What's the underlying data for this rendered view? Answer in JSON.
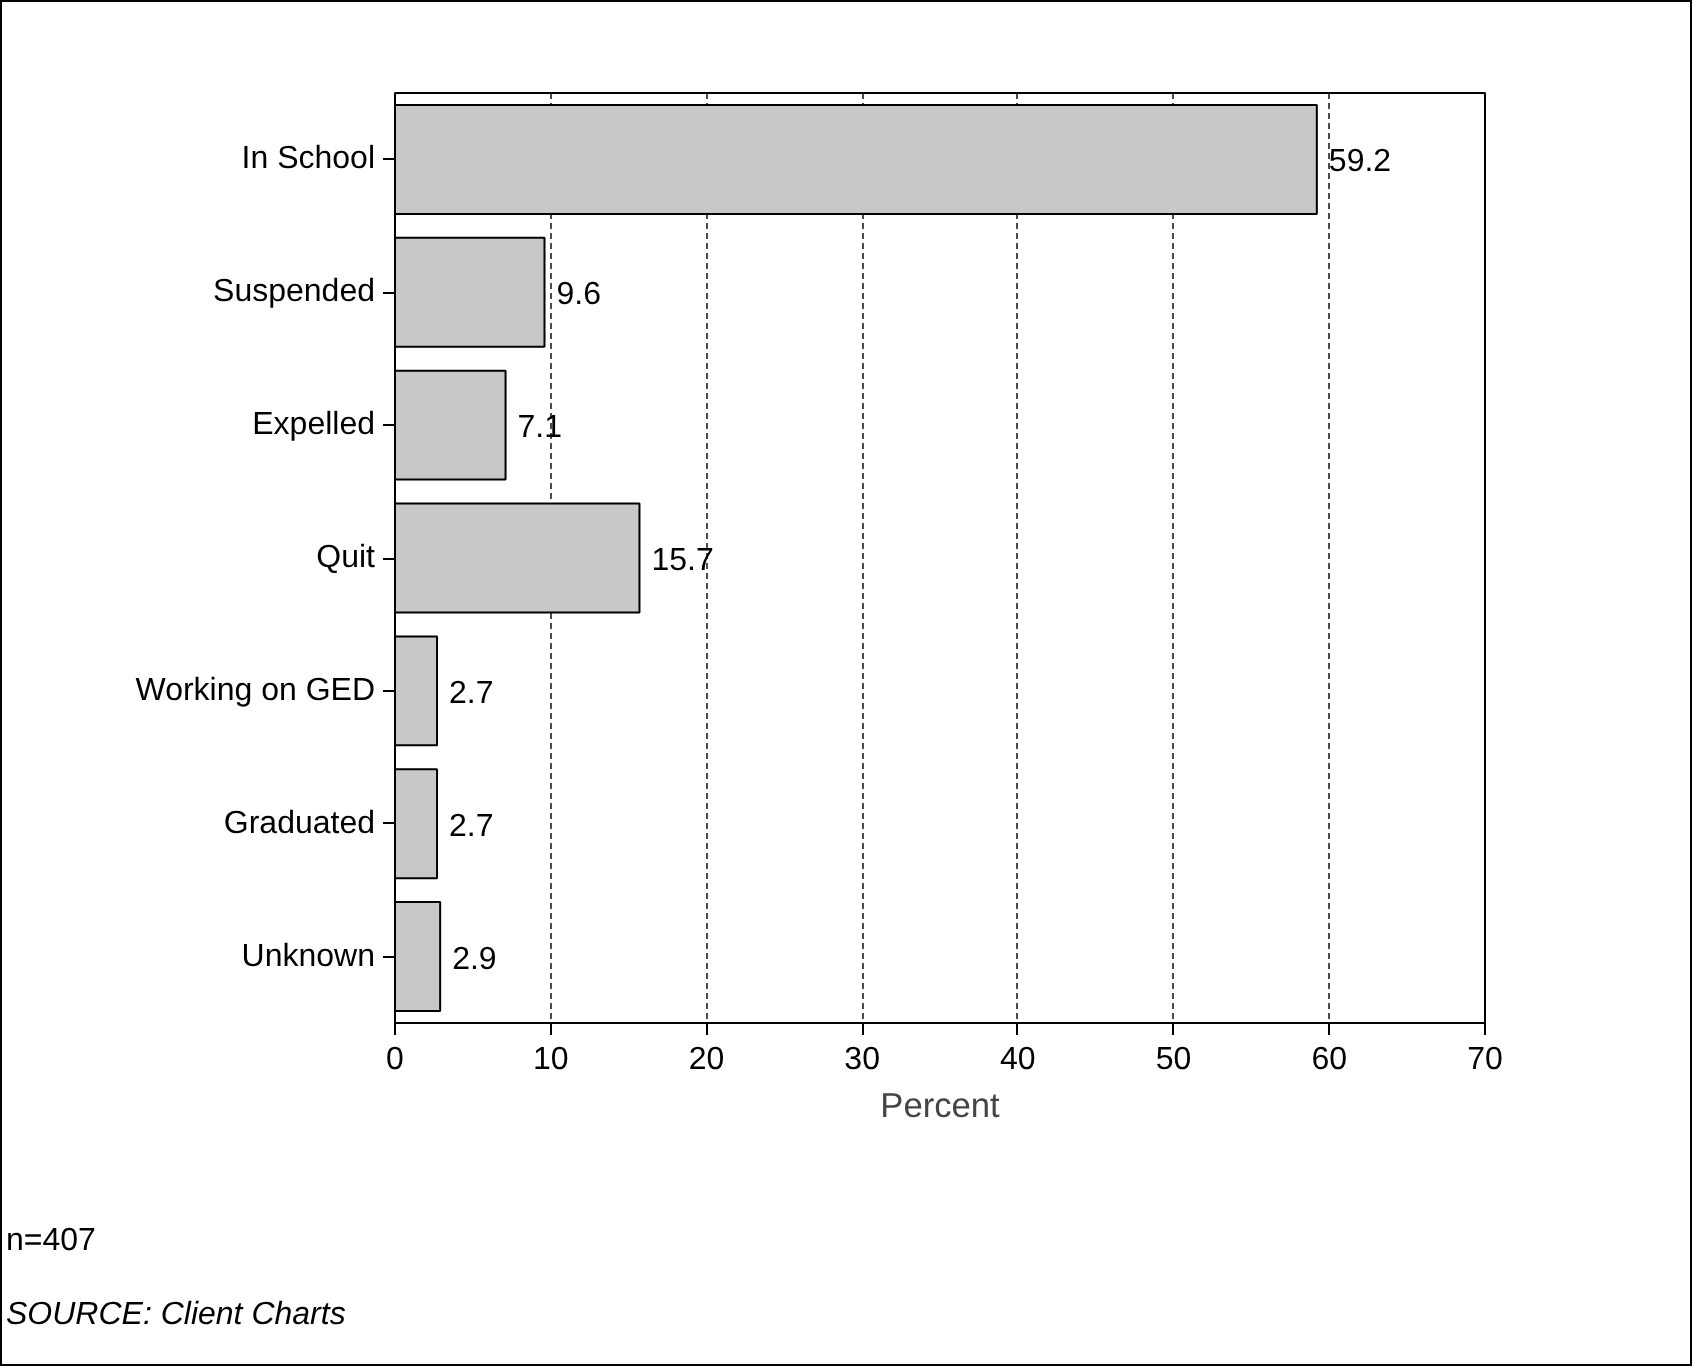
{
  "chart_data": {
    "type": "bar",
    "orientation": "horizontal",
    "categories": [
      "In School",
      "Suspended",
      "Expelled",
      "Quit",
      "Working on GED",
      "Graduated",
      "Unknown"
    ],
    "values": [
      59.2,
      9.6,
      7.1,
      15.7,
      2.7,
      2.7,
      2.9
    ],
    "color": "#c8c8c8",
    "xlim": [
      0,
      70
    ],
    "xticks": [
      0,
      10,
      20,
      30,
      40,
      50,
      60,
      70
    ],
    "xlabel": "Percent",
    "grid": "x",
    "data_labels": true,
    "annotations": [
      "n=407",
      "SOURCE: Client Charts"
    ]
  }
}
